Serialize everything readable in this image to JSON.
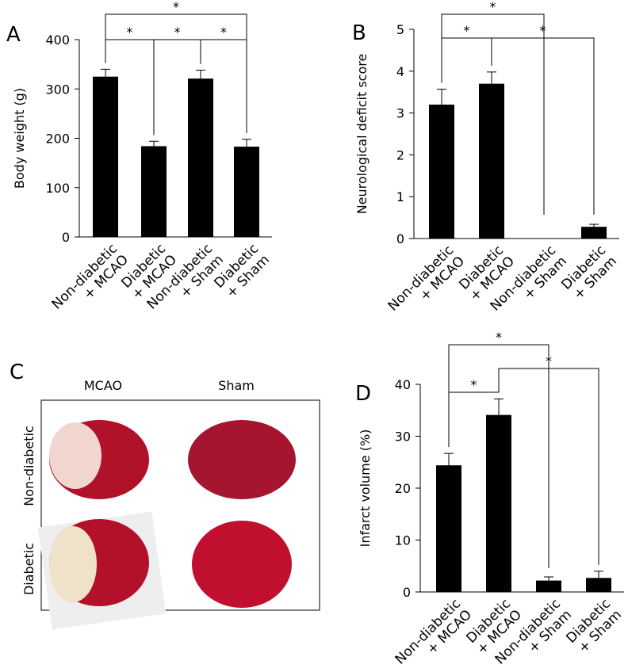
{
  "chart_data": [
    {
      "type": "bar",
      "panel_label": "A",
      "ylabel": "Body weight (g)",
      "categories": [
        [
          "Non-diabetic",
          "+ MCAO"
        ],
        [
          "Diabetic",
          "+ MCAO"
        ],
        [
          "Non-diabetic",
          "+ Sham"
        ],
        [
          "Diabetic",
          "+ Sham"
        ]
      ],
      "values": [
        325,
        184,
        321,
        183
      ],
      "errors": [
        15,
        10,
        17,
        15
      ],
      "color": "#000000",
      "ylim": [
        0,
        400
      ],
      "yticks": [
        0,
        100,
        200,
        300,
        400
      ],
      "annotations": [
        "*",
        "*",
        "*",
        "*"
      ]
    },
    {
      "type": "bar",
      "panel_label": "B",
      "ylabel": "Neurological deficit score",
      "categories": [
        [
          "Non-diabetic",
          "+ MCAO"
        ],
        [
          "Diabetic",
          "+ MCAO"
        ],
        [
          "Non-diabetic",
          "+ Sham"
        ],
        [
          "Diabetic",
          "+ Sham"
        ]
      ],
      "values": [
        3.2,
        3.7,
        0,
        0.28
      ],
      "errors": [
        0.37,
        0.28,
        0,
        0.06
      ],
      "color": "#000000",
      "ylim": [
        0,
        5
      ],
      "yticks": [
        0,
        1,
        2,
        3,
        4,
        5
      ],
      "annotations": [
        "*",
        "*",
        "*"
      ]
    },
    {
      "type": "bar",
      "panel_label": "D",
      "ylabel": "Infarct volume (%)",
      "categories": [
        [
          "Non-diabetic",
          "+ MCAO"
        ],
        [
          "Diabetic",
          "+ MCAO"
        ],
        [
          "Non-diabetic",
          "+ Sham"
        ],
        [
          "Diabetic",
          "+ Sham"
        ]
      ],
      "values": [
        24.4,
        34.1,
        2.2,
        2.7
      ],
      "errors": [
        2.3,
        3.1,
        0.7,
        1.3
      ],
      "color": "#000000",
      "ylim": [
        0,
        40
      ],
      "yticks": [
        0,
        10,
        20,
        30,
        40
      ],
      "annotations": [
        "*",
        "*",
        "*"
      ]
    }
  ],
  "image_panel": {
    "panel_label": "C",
    "columns": [
      "MCAO",
      "Sham"
    ],
    "rows": [
      "Non-diabetic",
      "Diabetic"
    ]
  }
}
